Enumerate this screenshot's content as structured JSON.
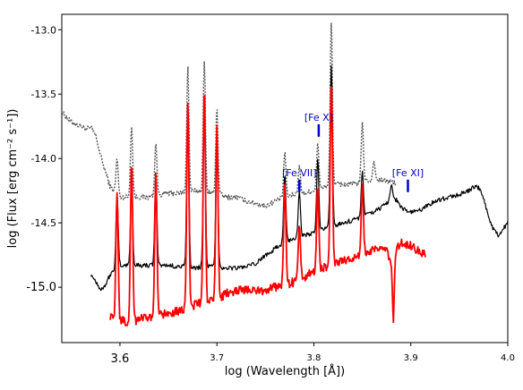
{
  "chart_data": {
    "type": "line",
    "title": "",
    "xlabel": "log (Wavelength [Å])",
    "ylabel": "log (Flux [erg cm⁻² s⁻¹])",
    "xlim": [
      3.54,
      4.0
    ],
    "ylim": [
      -15.43,
      -12.88
    ],
    "x_ticks": [
      {
        "value": 3.6,
        "label": "3.6"
      },
      {
        "value": 3.7,
        "label": "3.7"
      },
      {
        "value": 3.8,
        "label": "3.8"
      },
      {
        "value": 3.9,
        "label": "3.9"
      },
      {
        "value": 4.0,
        "label": "4.0"
      }
    ],
    "y_ticks": [
      {
        "value": -13.0,
        "label": "-13.0"
      },
      {
        "value": -13.5,
        "label": "-13.5"
      },
      {
        "value": -14.0,
        "label": "-14.0"
      },
      {
        "value": -14.5,
        "label": "-14.5"
      },
      {
        "value": -15.0,
        "label": "-15.0"
      }
    ],
    "grid": false,
    "legend": "none",
    "series": [
      {
        "style": "dotted",
        "color": "#555555",
        "continuum": [
          [
            3.54,
            -13.64
          ],
          [
            3.55,
            -13.72
          ],
          [
            3.56,
            -13.75
          ],
          [
            3.565,
            -13.77
          ],
          [
            3.57,
            -13.76
          ],
          [
            3.575,
            -13.82
          ],
          [
            3.58,
            -13.98
          ],
          [
            3.585,
            -14.1
          ],
          [
            3.59,
            -14.22
          ],
          [
            3.6,
            -14.3
          ],
          [
            3.61,
            -14.3
          ],
          [
            3.62,
            -14.3
          ],
          [
            3.63,
            -14.3
          ],
          [
            3.64,
            -14.28
          ],
          [
            3.65,
            -14.27
          ],
          [
            3.66,
            -14.27
          ],
          [
            3.67,
            -14.26
          ],
          [
            3.68,
            -14.25
          ],
          [
            3.69,
            -14.26
          ],
          [
            3.7,
            -14.27
          ],
          [
            3.71,
            -14.3
          ],
          [
            3.72,
            -14.3
          ],
          [
            3.73,
            -14.33
          ],
          [
            3.74,
            -14.35
          ],
          [
            3.75,
            -14.37
          ],
          [
            3.76,
            -14.33
          ],
          [
            3.77,
            -14.3
          ],
          [
            3.78,
            -14.28
          ],
          [
            3.79,
            -14.27
          ],
          [
            3.8,
            -14.25
          ],
          [
            3.81,
            -14.22
          ],
          [
            3.82,
            -14.2
          ],
          [
            3.83,
            -14.2
          ],
          [
            3.84,
            -14.2
          ],
          [
            3.85,
            -14.18
          ],
          [
            3.86,
            -14.17
          ],
          [
            3.87,
            -14.17
          ],
          [
            3.88,
            -14.18
          ],
          [
            3.885,
            -14.2
          ]
        ],
        "lines": [
          [
            3.597,
            -14.0
          ],
          [
            3.612,
            -13.75
          ],
          [
            3.637,
            -13.88
          ],
          [
            3.67,
            -13.28
          ],
          [
            3.687,
            -13.25
          ],
          [
            3.7,
            -13.6
          ],
          [
            3.77,
            -13.95
          ],
          [
            3.785,
            -14.05
          ],
          [
            3.804,
            -13.88
          ],
          [
            3.818,
            -12.93
          ],
          [
            3.85,
            -13.72
          ],
          [
            3.862,
            -14.02
          ]
        ]
      },
      {
        "style": "solid",
        "color": "#000000",
        "continuum": [
          [
            3.57,
            -14.9
          ],
          [
            3.575,
            -14.95
          ],
          [
            3.58,
            -15.02
          ],
          [
            3.585,
            -14.98
          ],
          [
            3.59,
            -14.9
          ],
          [
            3.6,
            -14.83
          ],
          [
            3.61,
            -14.83
          ],
          [
            3.62,
            -14.83
          ],
          [
            3.63,
            -14.83
          ],
          [
            3.64,
            -14.83
          ],
          [
            3.65,
            -14.83
          ],
          [
            3.66,
            -14.84
          ],
          [
            3.67,
            -14.84
          ],
          [
            3.68,
            -14.85
          ],
          [
            3.69,
            -14.84
          ],
          [
            3.7,
            -14.84
          ],
          [
            3.71,
            -14.85
          ],
          [
            3.72,
            -14.85
          ],
          [
            3.73,
            -14.84
          ],
          [
            3.74,
            -14.82
          ],
          [
            3.75,
            -14.75
          ],
          [
            3.76,
            -14.7
          ],
          [
            3.77,
            -14.65
          ],
          [
            3.78,
            -14.62
          ],
          [
            3.79,
            -14.6
          ],
          [
            3.8,
            -14.58
          ],
          [
            3.81,
            -14.55
          ],
          [
            3.82,
            -14.52
          ],
          [
            3.83,
            -14.5
          ],
          [
            3.84,
            -14.48
          ],
          [
            3.85,
            -14.45
          ],
          [
            3.86,
            -14.42
          ],
          [
            3.87,
            -14.38
          ],
          [
            3.875,
            -14.35
          ],
          [
            3.88,
            -14.3
          ],
          [
            3.885,
            -14.32
          ],
          [
            3.89,
            -14.38
          ],
          [
            3.9,
            -14.42
          ],
          [
            3.91,
            -14.4
          ],
          [
            3.92,
            -14.35
          ],
          [
            3.93,
            -14.32
          ],
          [
            3.94,
            -14.3
          ],
          [
            3.95,
            -14.28
          ],
          [
            3.96,
            -14.25
          ],
          [
            3.965,
            -14.22
          ],
          [
            3.97,
            -14.23
          ],
          [
            3.975,
            -14.3
          ],
          [
            3.98,
            -14.45
          ],
          [
            3.985,
            -14.55
          ],
          [
            3.99,
            -14.6
          ],
          [
            3.995,
            -14.55
          ],
          [
            4.0,
            -14.5
          ]
        ],
        "lines": [
          [
            3.597,
            -14.28
          ],
          [
            3.612,
            -14.2
          ],
          [
            3.637,
            -14.12
          ],
          [
            3.67,
            -13.58
          ],
          [
            3.687,
            -13.55
          ],
          [
            3.7,
            -13.88
          ],
          [
            3.77,
            -14.12
          ],
          [
            3.785,
            -14.25
          ],
          [
            3.804,
            -14.0
          ],
          [
            3.818,
            -13.28
          ],
          [
            3.85,
            -14.1
          ],
          [
            3.88,
            -14.2
          ]
        ]
      },
      {
        "style": "solid",
        "color": "#ff0000",
        "continuum": [
          [
            3.59,
            -15.22
          ],
          [
            3.6,
            -15.26
          ],
          [
            3.61,
            -15.27
          ],
          [
            3.62,
            -15.25
          ],
          [
            3.63,
            -15.24
          ],
          [
            3.64,
            -15.22
          ],
          [
            3.65,
            -15.2
          ],
          [
            3.66,
            -15.18
          ],
          [
            3.67,
            -15.16
          ],
          [
            3.68,
            -15.13
          ],
          [
            3.69,
            -15.12
          ],
          [
            3.7,
            -15.1
          ],
          [
            3.71,
            -15.05
          ],
          [
            3.72,
            -15.02
          ],
          [
            3.73,
            -15.02
          ],
          [
            3.74,
            -15.03
          ],
          [
            3.75,
            -15.02
          ],
          [
            3.76,
            -15.0
          ],
          [
            3.77,
            -14.98
          ],
          [
            3.78,
            -14.96
          ],
          [
            3.79,
            -14.92
          ],
          [
            3.8,
            -14.88
          ],
          [
            3.81,
            -14.85
          ],
          [
            3.82,
            -14.82
          ],
          [
            3.83,
            -14.8
          ],
          [
            3.84,
            -14.78
          ],
          [
            3.85,
            -14.76
          ],
          [
            3.86,
            -14.72
          ],
          [
            3.87,
            -14.7
          ],
          [
            3.875,
            -14.72
          ],
          [
            3.88,
            -14.8
          ],
          [
            3.885,
            -14.7
          ],
          [
            3.89,
            -14.65
          ],
          [
            3.9,
            -14.68
          ],
          [
            3.91,
            -14.72
          ],
          [
            3.915,
            -14.75
          ]
        ],
        "lines": [
          [
            3.597,
            -14.26
          ],
          [
            3.612,
            -14.02
          ],
          [
            3.637,
            -14.12
          ],
          [
            3.67,
            -13.55
          ],
          [
            3.687,
            -13.43
          ],
          [
            3.7,
            -13.75
          ],
          [
            3.77,
            -14.2
          ],
          [
            3.785,
            -14.52
          ],
          [
            3.804,
            -14.22
          ],
          [
            3.818,
            -13.38
          ],
          [
            3.85,
            -14.2
          ]
        ],
        "absorption": [
          3.882,
          -15.3
        ]
      }
    ],
    "annotations": [
      {
        "text": "[Fe X]",
        "x": 3.805,
        "y": -13.72
      },
      {
        "text": "[Fe VII]",
        "x": 3.785,
        "y": -14.15
      },
      {
        "text": "[Fe XI]",
        "x": 3.897,
        "y": -14.15
      }
    ]
  }
}
